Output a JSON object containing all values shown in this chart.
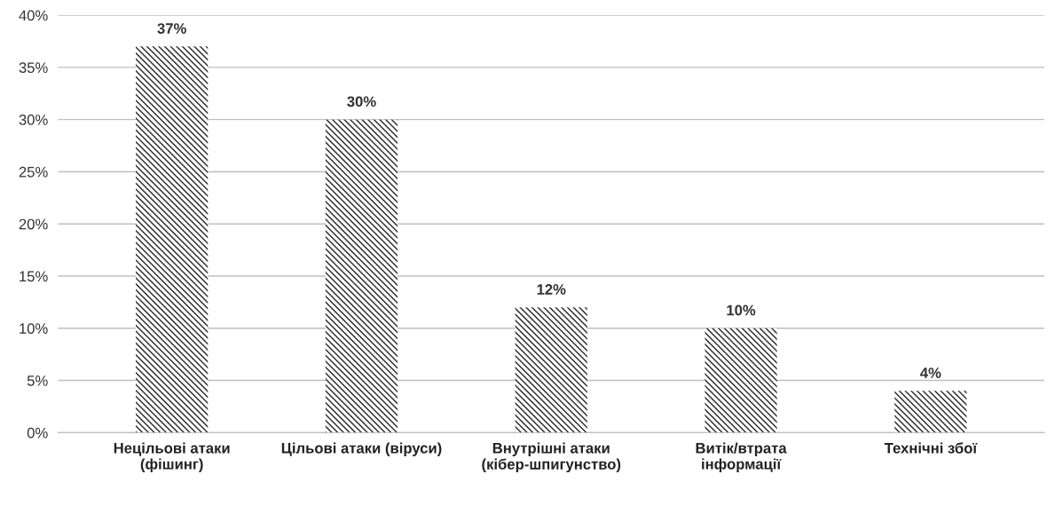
{
  "chart_data": {
    "type": "bar",
    "categories": [
      "Нецільові атаки\n(фішинг)",
      "Цільові атаки (віруси)",
      "Внутрішні атаки\n(кібер-шпигунство)",
      "Витік/втрата\nінформації",
      "Технічні збої"
    ],
    "values": [
      37,
      30,
      12,
      10,
      4
    ],
    "value_labels": [
      "37%",
      "30%",
      "12%",
      "10%",
      "4%"
    ],
    "color": "#262626",
    "ylim": [
      0,
      40
    ],
    "yticks": [
      {
        "value": 0,
        "label": "0%"
      },
      {
        "value": 5,
        "label": "5%"
      },
      {
        "value": 10,
        "label": "10%"
      },
      {
        "value": 15,
        "label": "15%"
      },
      {
        "value": 20,
        "label": "20%"
      },
      {
        "value": 25,
        "label": "25%"
      },
      {
        "value": 30,
        "label": "30%"
      },
      {
        "value": 35,
        "label": "35%"
      },
      {
        "value": 40,
        "label": "40%"
      }
    ],
    "grid": "y",
    "legend": false
  }
}
